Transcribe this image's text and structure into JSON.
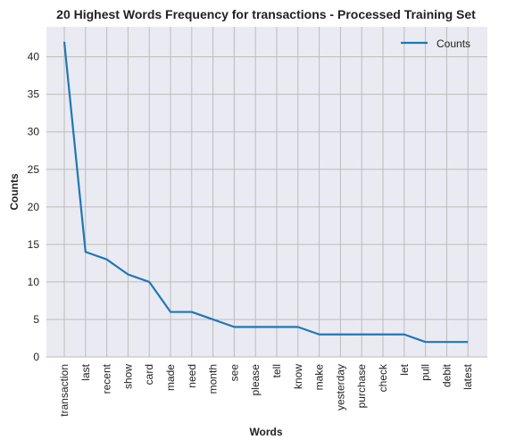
{
  "chart_data": {
    "type": "line",
    "title": "20 Highest Words Frequency for transactions - Processed Training Set",
    "xlabel": "Words",
    "ylabel": "Counts",
    "categories": [
      "transaction",
      "last",
      "recent",
      "show",
      "card",
      "made",
      "need",
      "month",
      "see",
      "please",
      "tell",
      "know",
      "make",
      "yesterday",
      "purchase",
      "check",
      "let",
      "pull",
      "debit",
      "latest"
    ],
    "series": [
      {
        "name": "Counts",
        "values": [
          42,
          14,
          13,
          11,
          10,
          6,
          6,
          5,
          4,
          4,
          4,
          4,
          3,
          3,
          3,
          3,
          3,
          2,
          2,
          2
        ]
      }
    ],
    "ylim": [
      0,
      44
    ],
    "yticks": [
      0,
      5,
      10,
      15,
      20,
      25,
      30,
      35,
      40
    ],
    "grid": true,
    "legend": "top-right",
    "colors": {
      "line": "#1f77b4",
      "background": "#eaeaf2",
      "grid": "#bcbcbc"
    }
  }
}
